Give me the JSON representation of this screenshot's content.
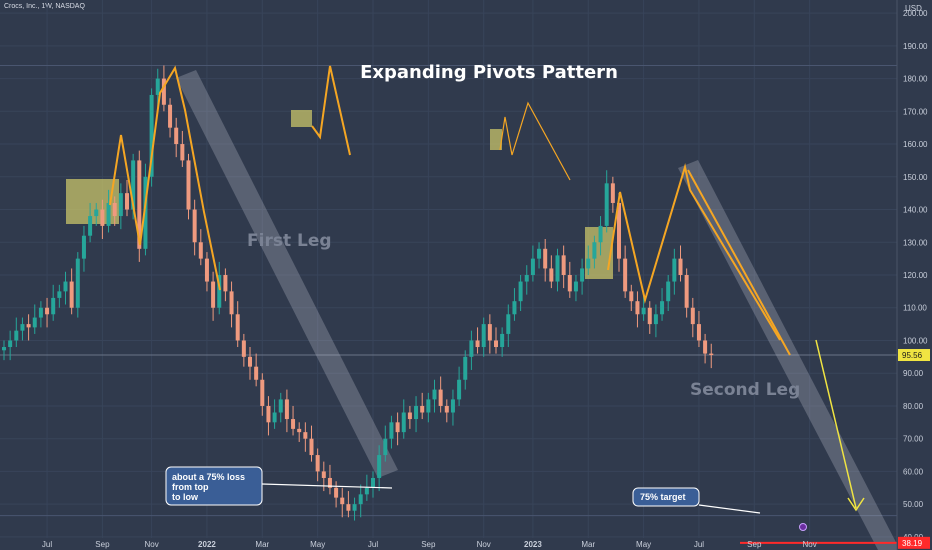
{
  "symbol_label": "Crocs, Inc., 1W, NASDAQ",
  "currency": "USD",
  "colors": {
    "up": "#26a69a",
    "down": "#ef9a7f",
    "bg": "#303a4d",
    "pattern": "#f5a623",
    "box": "#c8c46a",
    "target": "#ff2a2a",
    "projection": "#f0e442",
    "band": "#b8bec9"
  },
  "chart_data": {
    "type": "candlestick",
    "title": "Expanding Pivots Pattern",
    "ylim": [
      36,
      204
    ],
    "y_ticks": [
      40,
      50,
      60,
      70,
      80,
      90,
      100,
      110,
      120,
      130,
      140,
      150,
      160,
      170,
      180,
      190,
      200
    ],
    "x_ticks": [
      {
        "label": "Jul",
        "idx": 7,
        "bold": false
      },
      {
        "label": "Sep",
        "idx": 16,
        "bold": false
      },
      {
        "label": "Nov",
        "idx": 24,
        "bold": false
      },
      {
        "label": "2022",
        "idx": 33,
        "bold": true
      },
      {
        "label": "Mar",
        "idx": 42,
        "bold": false
      },
      {
        "label": "May",
        "idx": 51,
        "bold": false
      },
      {
        "label": "Jul",
        "idx": 60,
        "bold": false
      },
      {
        "label": "Sep",
        "idx": 69,
        "bold": false
      },
      {
        "label": "Nov",
        "idx": 78,
        "bold": false
      },
      {
        "label": "2023",
        "idx": 86,
        "bold": true
      },
      {
        "label": "Mar",
        "idx": 95,
        "bold": false
      },
      {
        "label": "May",
        "idx": 104,
        "bold": false
      },
      {
        "label": "Jul",
        "idx": 113,
        "bold": false
      },
      {
        "label": "Sep",
        "idx": 122,
        "bold": false
      },
      {
        "label": "Nov",
        "idx": 131,
        "bold": false
      }
    ],
    "last_price": "95.56",
    "last_value": 95.56,
    "target_price": "38.19",
    "target_value": 38.19,
    "high_value": 184,
    "low_value": 46.5,
    "closes": [
      98,
      100,
      103,
      105,
      104,
      107,
      110,
      108,
      113,
      115,
      118,
      110,
      125,
      132,
      138,
      140,
      135,
      142,
      138,
      145,
      140,
      155,
      128,
      150,
      175,
      180,
      172,
      165,
      160,
      155,
      140,
      130,
      125,
      118,
      110,
      120,
      115,
      108,
      100,
      95,
      92,
      88,
      80,
      75,
      78,
      82,
      76,
      73,
      72,
      70,
      65,
      60,
      58,
      55,
      52,
      50,
      48,
      50,
      53,
      55,
      58,
      65,
      70,
      75,
      72,
      78,
      76,
      80,
      78,
      82,
      85,
      80,
      78,
      82,
      88,
      95,
      100,
      98,
      105,
      100,
      98,
      102,
      108,
      112,
      118,
      120,
      125,
      128,
      122,
      118,
      126,
      120,
      115,
      118,
      122,
      125,
      130,
      135,
      148,
      142,
      125,
      115,
      112,
      108,
      110,
      105,
      108,
      112,
      118,
      125,
      120,
      110,
      105,
      100,
      96,
      95.56
    ],
    "annotations": [
      "First Leg",
      "Second Leg",
      "about a 75% loss from top to low",
      "75% target"
    ]
  },
  "annotations": {
    "first_leg": "First Leg",
    "second_leg": "Second Leg",
    "loss_line1": "about a 75% loss",
    "loss_line2": "from  top",
    "loss_line3": "to low",
    "target_label": "75% target"
  }
}
